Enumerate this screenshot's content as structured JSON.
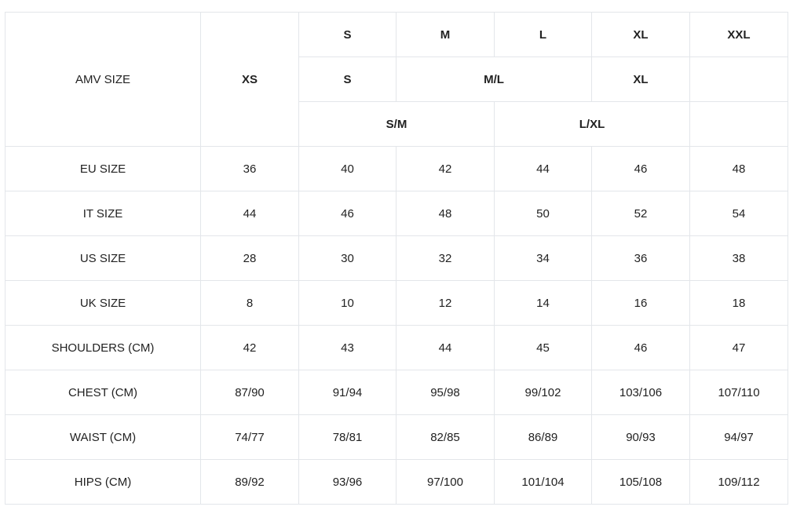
{
  "header": {
    "label": "AMV SIZE",
    "xs": "XS",
    "row1": [
      "S",
      "M",
      "L",
      "XL",
      "XXL"
    ],
    "row2": [
      "S",
      "M/L",
      "XL",
      ""
    ],
    "row3": [
      "S/M",
      "L/XL",
      ""
    ]
  },
  "rows": [
    {
      "label": "EU SIZE",
      "values": [
        "36",
        "40",
        "42",
        "44",
        "46",
        "48"
      ]
    },
    {
      "label": "IT SIZE",
      "values": [
        "44",
        "46",
        "48",
        "50",
        "52",
        "54"
      ]
    },
    {
      "label": "US SIZE",
      "values": [
        "28",
        "30",
        "32",
        "34",
        "36",
        "38"
      ]
    },
    {
      "label": "UK SIZE",
      "values": [
        "8",
        "10",
        "12",
        "14",
        "16",
        "18"
      ]
    },
    {
      "label": "SHOULDERS (CM)",
      "values": [
        "42",
        "43",
        "44",
        "45",
        "46",
        "47"
      ]
    },
    {
      "label": "CHEST (CM)",
      "values": [
        "87/90",
        "91/94",
        "95/98",
        "99/102",
        "103/106",
        "107/110"
      ]
    },
    {
      "label": "WAIST (CM)",
      "values": [
        "74/77",
        "78/81",
        "82/85",
        "86/89",
        "90/93",
        "94/97"
      ]
    },
    {
      "label": "HIPS (CM)",
      "values": [
        "89/92",
        "93/96",
        "97/100",
        "101/104",
        "105/108",
        "109/112"
      ]
    }
  ]
}
